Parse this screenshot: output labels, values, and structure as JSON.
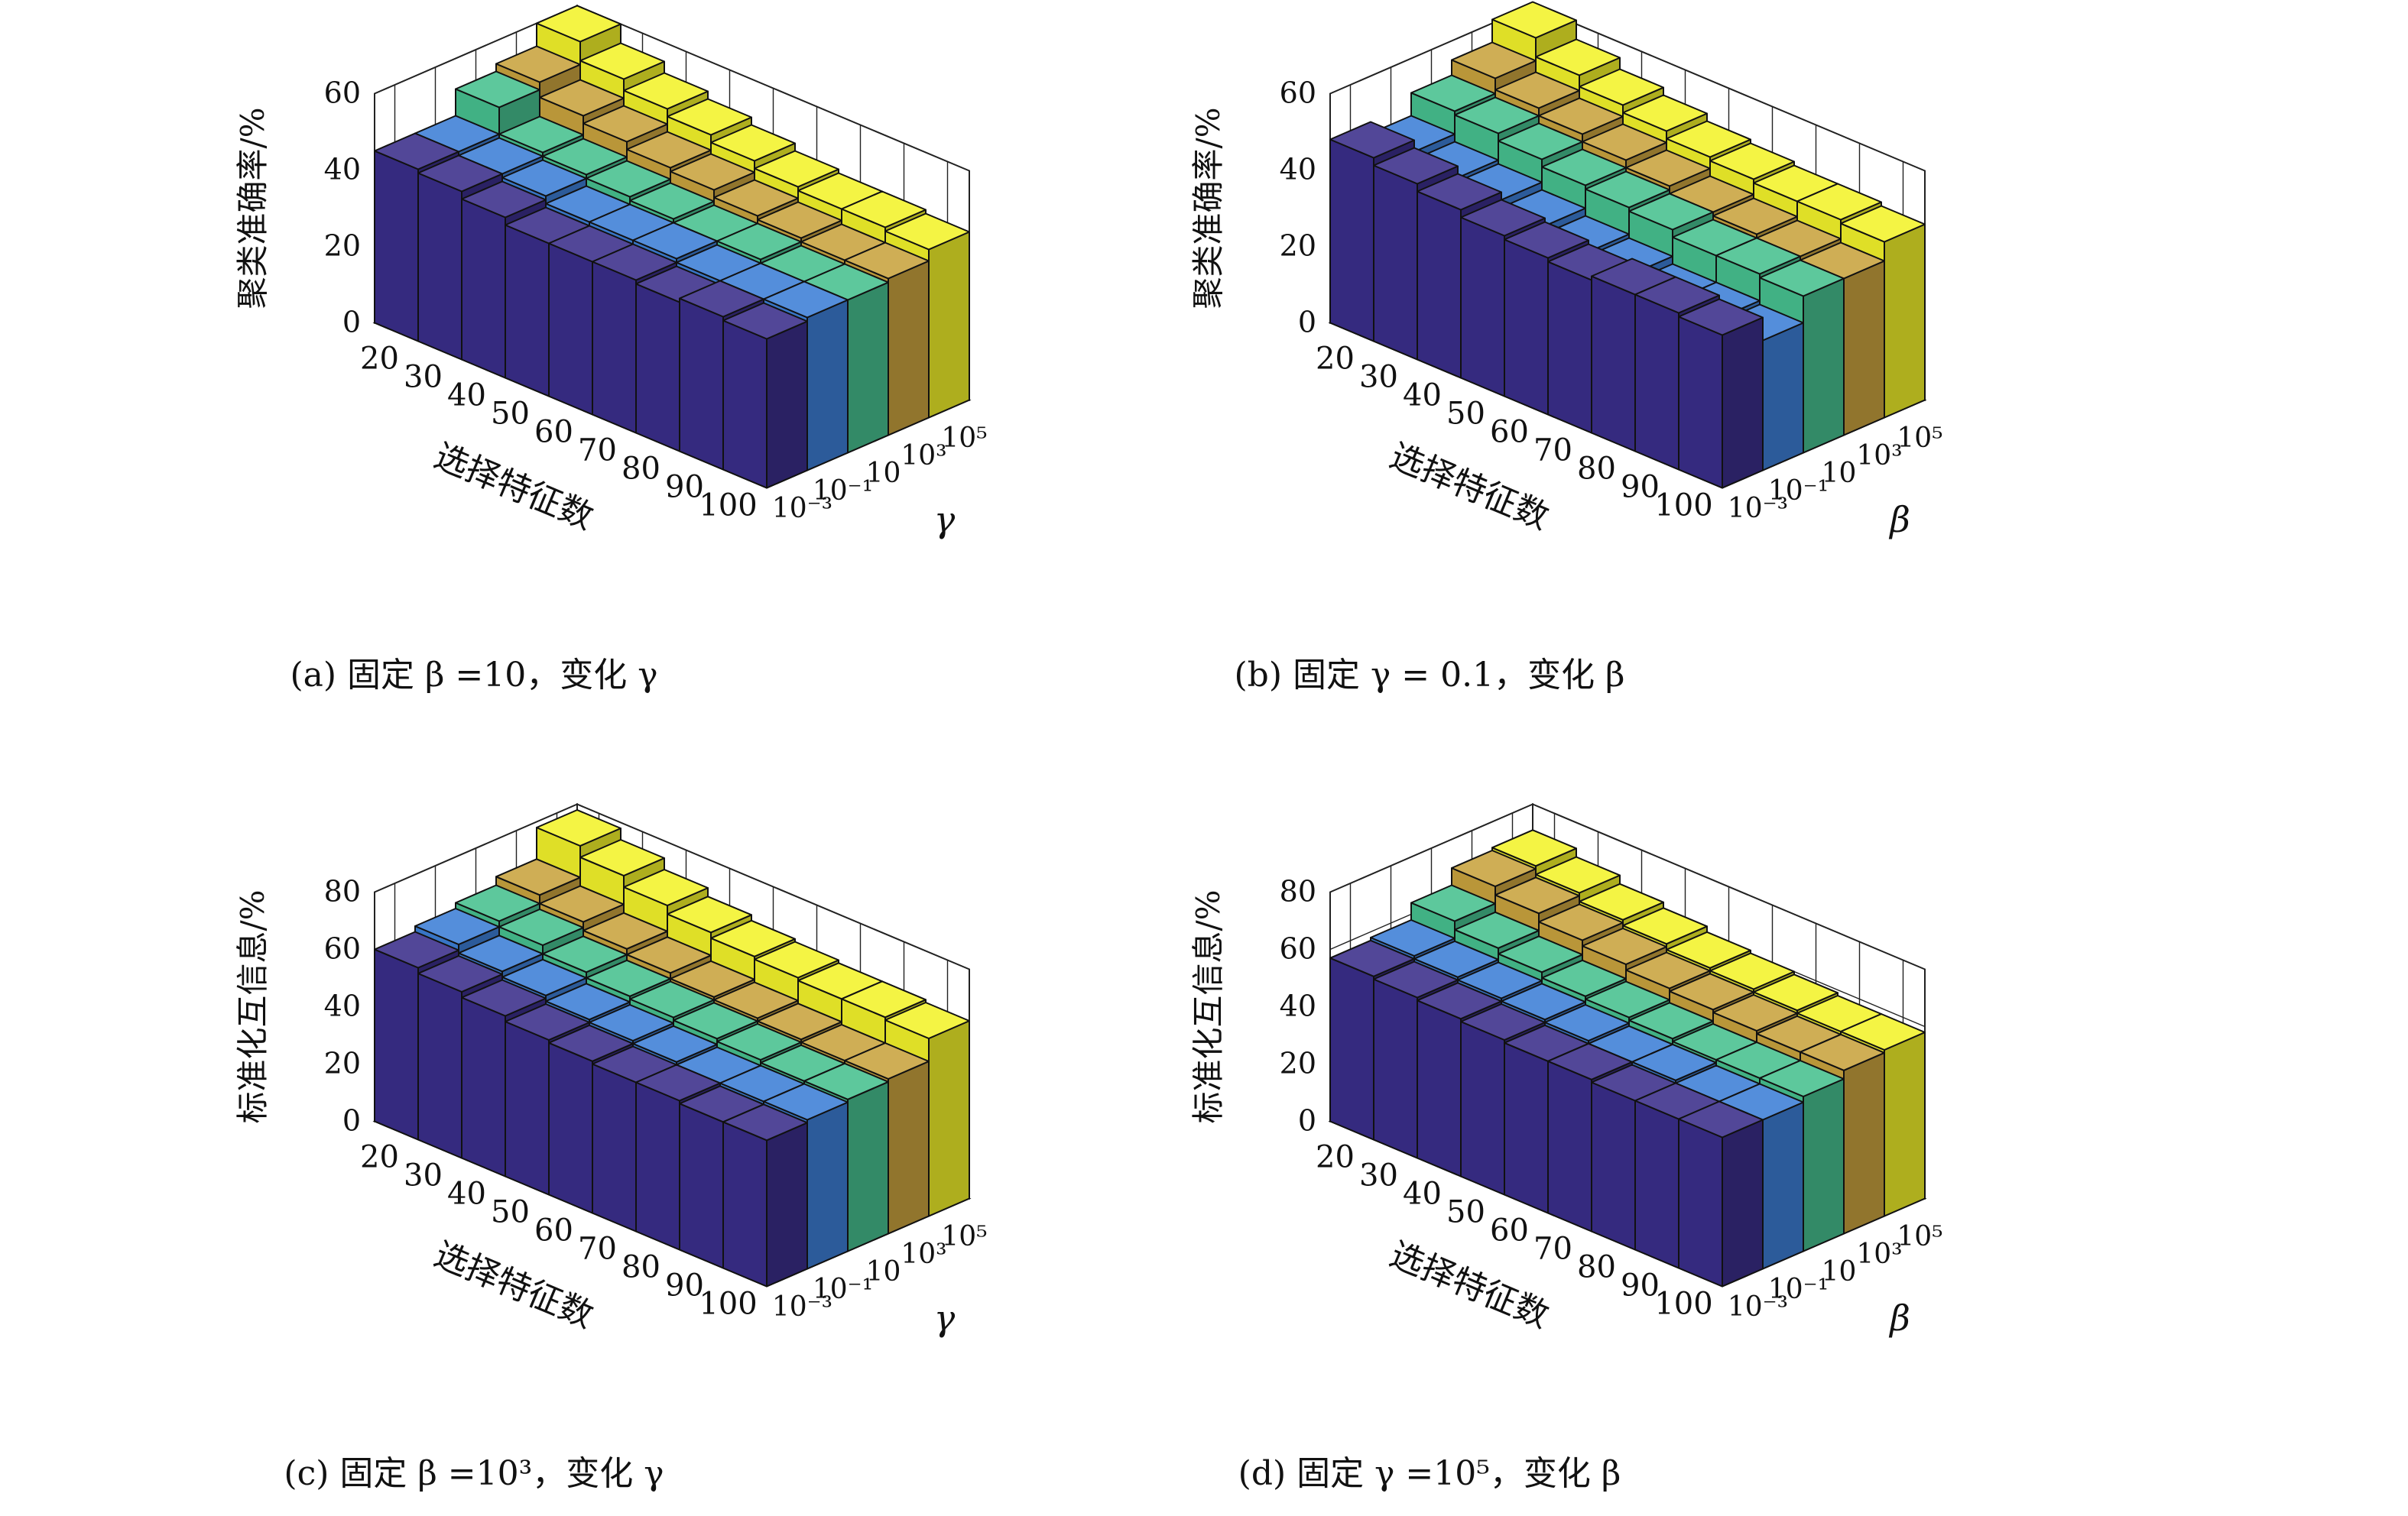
{
  "chart_data": [
    {
      "type": "bar3d",
      "caption": "(a) 固定 β =10，变化 γ",
      "zlabel": "聚类准确率/%",
      "zlim": [
        0,
        60
      ],
      "zticks": [
        "0",
        "20",
        "40",
        "60"
      ],
      "xlabel": "选择特征数",
      "x_categories": [
        "20",
        "30",
        "40",
        "50",
        "60",
        "70",
        "80",
        "90",
        "100"
      ],
      "ylabel": "γ",
      "y_categories": [
        "10⁻³",
        "10⁻¹",
        "10",
        "10³",
        "10⁵"
      ],
      "series": [
        {
          "name": "10⁻³",
          "color": "#3a2e8a",
          "values": [
            45,
            44,
            42,
            40,
            40,
            40,
            39,
            40,
            39
          ]
        },
        {
          "name": "10⁻¹",
          "color": "#3d7fd6",
          "values": [
            45,
            44,
            43,
            41,
            41,
            41,
            40,
            40,
            40
          ]
        },
        {
          "name": "10",
          "color": "#47c08f",
          "values": [
            52,
            45,
            44,
            43,
            42,
            41,
            41,
            40,
            40
          ]
        },
        {
          "name": "10³",
          "color": "#c9a33e",
          "values": [
            54,
            50,
            48,
            46,
            45,
            43,
            42,
            41,
            41
          ]
        },
        {
          "name": "10⁵",
          "color": "#f2f22a",
          "values": [
            60,
            55,
            52,
            50,
            48,
            46,
            45,
            45,
            44
          ]
        }
      ]
    },
    {
      "type": "bar3d",
      "caption": "(b) 固定 γ = 0.1，变化 β",
      "zlabel": "聚类准确率/%",
      "zlim": [
        0,
        60
      ],
      "zticks": [
        "0",
        "20",
        "40",
        "60"
      ],
      "xlabel": "选择特征数",
      "x_categories": [
        "20",
        "30",
        "40",
        "50",
        "60",
        "70",
        "80",
        "90",
        "100"
      ],
      "ylabel": "β",
      "y_categories": [
        "10⁻³",
        "10⁻¹",
        "10",
        "10³",
        "10⁵"
      ],
      "series": [
        {
          "name": "10⁻³",
          "color": "#3a2e8a",
          "values": [
            48,
            46,
            44,
            42,
            41,
            40,
            41,
            41,
            40
          ]
        },
        {
          "name": "10⁻¹",
          "color": "#3d7fd6",
          "values": [
            45,
            43,
            42,
            40,
            38,
            37,
            35,
            35,
            34
          ]
        },
        {
          "name": "10",
          "color": "#47c08f",
          "values": [
            51,
            50,
            48,
            46,
            45,
            44,
            42,
            42,
            41
          ]
        },
        {
          "name": "10³",
          "color": "#c9a33e",
          "values": [
            55,
            52,
            50,
            48,
            46,
            44,
            43,
            42,
            41
          ]
        },
        {
          "name": "10⁵",
          "color": "#f2f22a",
          "values": [
            61,
            56,
            53,
            51,
            49,
            48,
            47,
            47,
            46
          ]
        }
      ]
    },
    {
      "type": "bar3d",
      "caption": "(c) 固定 β =10³，变化 γ",
      "zlabel": "标准化互信息/%",
      "zlim": [
        0,
        80
      ],
      "zticks": [
        "0",
        "20",
        "40",
        "60",
        "80"
      ],
      "xlabel": "选择特征数",
      "x_categories": [
        "20",
        "30",
        "40",
        "50",
        "60",
        "70",
        "80",
        "90",
        "100"
      ],
      "ylabel": "γ",
      "y_categories": [
        "10⁻³",
        "10⁻¹",
        "10",
        "10³",
        "10⁵"
      ],
      "series": [
        {
          "name": "10⁻³",
          "color": "#3a2e8a",
          "values": [
            60,
            58,
            56,
            54,
            53,
            52,
            52,
            51,
            51
          ]
        },
        {
          "name": "10⁻¹",
          "color": "#3d7fd6",
          "values": [
            62,
            59,
            57,
            55,
            54,
            53,
            52,
            52,
            52
          ]
        },
        {
          "name": "10",
          "color": "#47c08f",
          "values": [
            64,
            62,
            59,
            57,
            56,
            55,
            54,
            53,
            53
          ]
        },
        {
          "name": "10³",
          "color": "#c9a33e",
          "values": [
            67,
            64,
            61,
            59,
            57,
            56,
            55,
            54,
            54
          ]
        },
        {
          "name": "10⁵",
          "color": "#f2f22a",
          "values": [
            78,
            74,
            70,
            67,
            65,
            64,
            63,
            63,
            62
          ]
        }
      ]
    },
    {
      "type": "bar3d",
      "caption": "(d) 固定 γ =10⁵，变化 β",
      "zlabel": "标准化互信息/%",
      "zlim": [
        0,
        80
      ],
      "zticks": [
        "0",
        "20",
        "40",
        "60",
        "80"
      ],
      "xlabel": "选择特征数",
      "x_categories": [
        "20",
        "30",
        "40",
        "50",
        "60",
        "70",
        "80",
        "90",
        "100"
      ],
      "ylabel": "β",
      "y_categories": [
        "10⁻³",
        "10⁻¹",
        "10",
        "10³",
        "10⁵"
      ],
      "series": [
        {
          "name": "10⁻³",
          "color": "#3a2e8a",
          "values": [
            57,
            56,
            55,
            54,
            53,
            53,
            52,
            52,
            52
          ]
        },
        {
          "name": "10⁻¹",
          "color": "#3d7fd6",
          "values": [
            58,
            57,
            56,
            55,
            54,
            53,
            53,
            52,
            52
          ]
        },
        {
          "name": "10",
          "color": "#47c08f",
          "values": [
            64,
            61,
            59,
            57,
            56,
            55,
            54,
            54,
            54
          ]
        },
        {
          "name": "10³",
          "color": "#c9a33e",
          "values": [
            70,
            67,
            64,
            62,
            60,
            59,
            58,
            57,
            57
          ]
        },
        {
          "name": "10⁵",
          "color": "#f2f22a",
          "values": [
            71,
            68,
            65,
            63,
            61,
            60,
            59,
            58,
            58
          ]
        }
      ]
    }
  ]
}
